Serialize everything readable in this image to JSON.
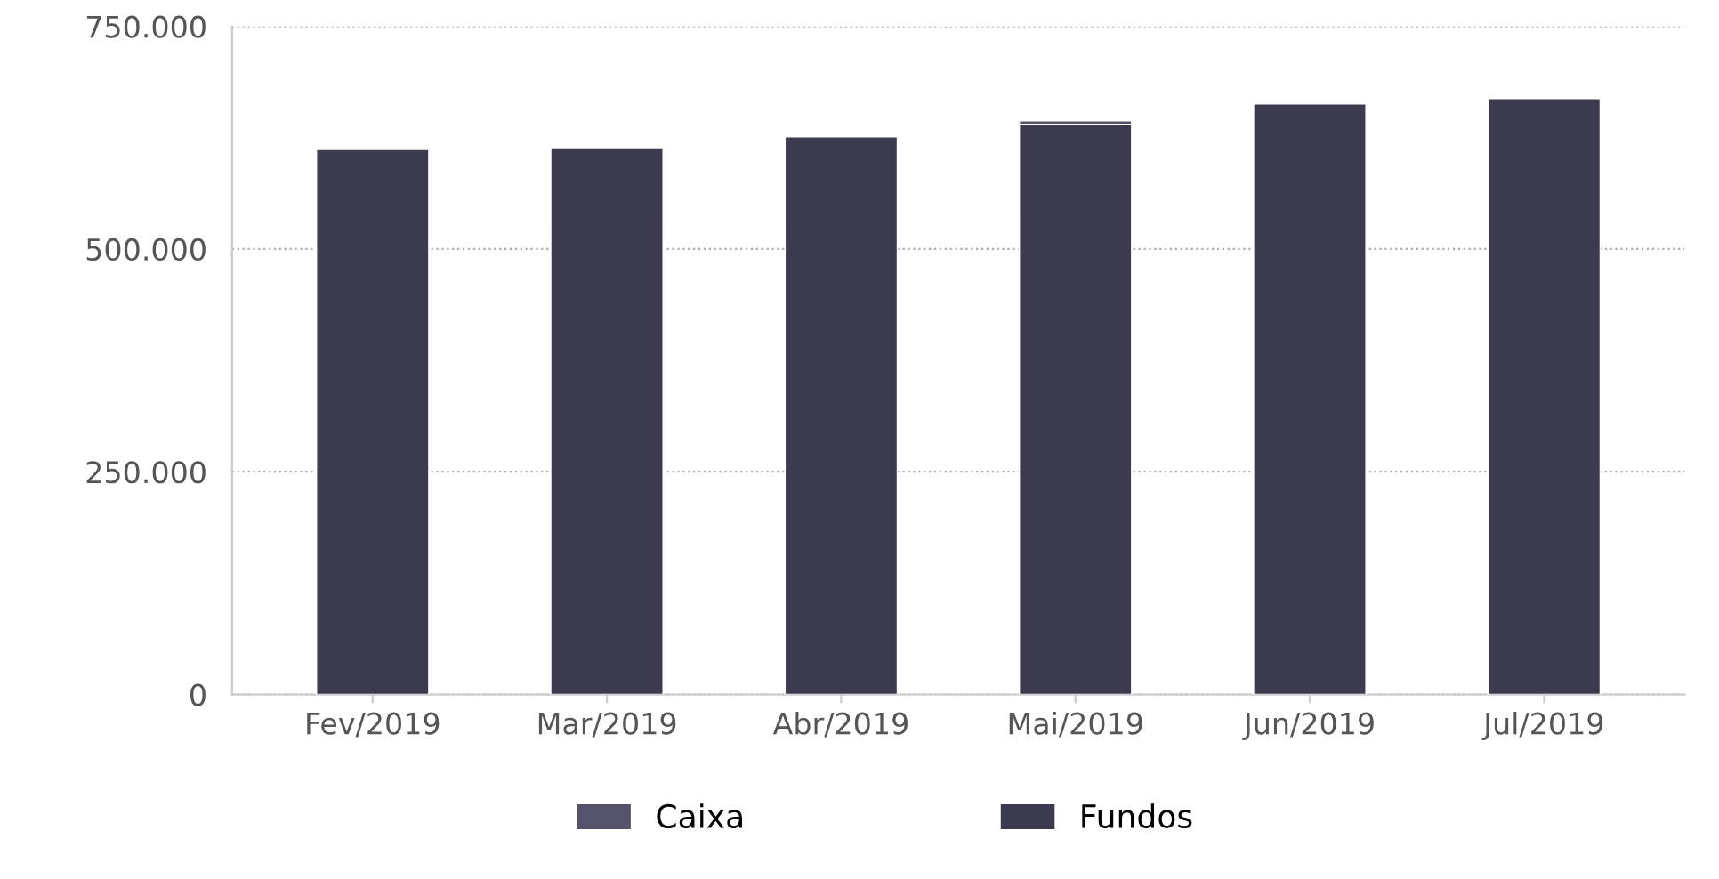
{
  "chart_data": {
    "type": "bar",
    "stacked": true,
    "categories": [
      "Fev/2019",
      "Mar/2019",
      "Abr/2019",
      "Mai/2019",
      "Jun/2019",
      "Jul/2019"
    ],
    "series": [
      {
        "name": "Fundos",
        "color": "#3b3a4f",
        "values": [
          612000,
          614000,
          626000,
          640000,
          663000,
          669000
        ]
      },
      {
        "name": "Caixa",
        "color": "#55536a",
        "values": [
          null,
          null,
          null,
          4000,
          null,
          null
        ]
      }
    ],
    "ylim": [
      0,
      750000
    ],
    "yticks": [
      0,
      {
        "value": 250000,
        "label": "250.000"
      },
      {
        "value": 500000,
        "label": "500.000"
      },
      {
        "value": 750000,
        "label": "750.000"
      }
    ],
    "grid": "y",
    "legend": "bottom"
  }
}
